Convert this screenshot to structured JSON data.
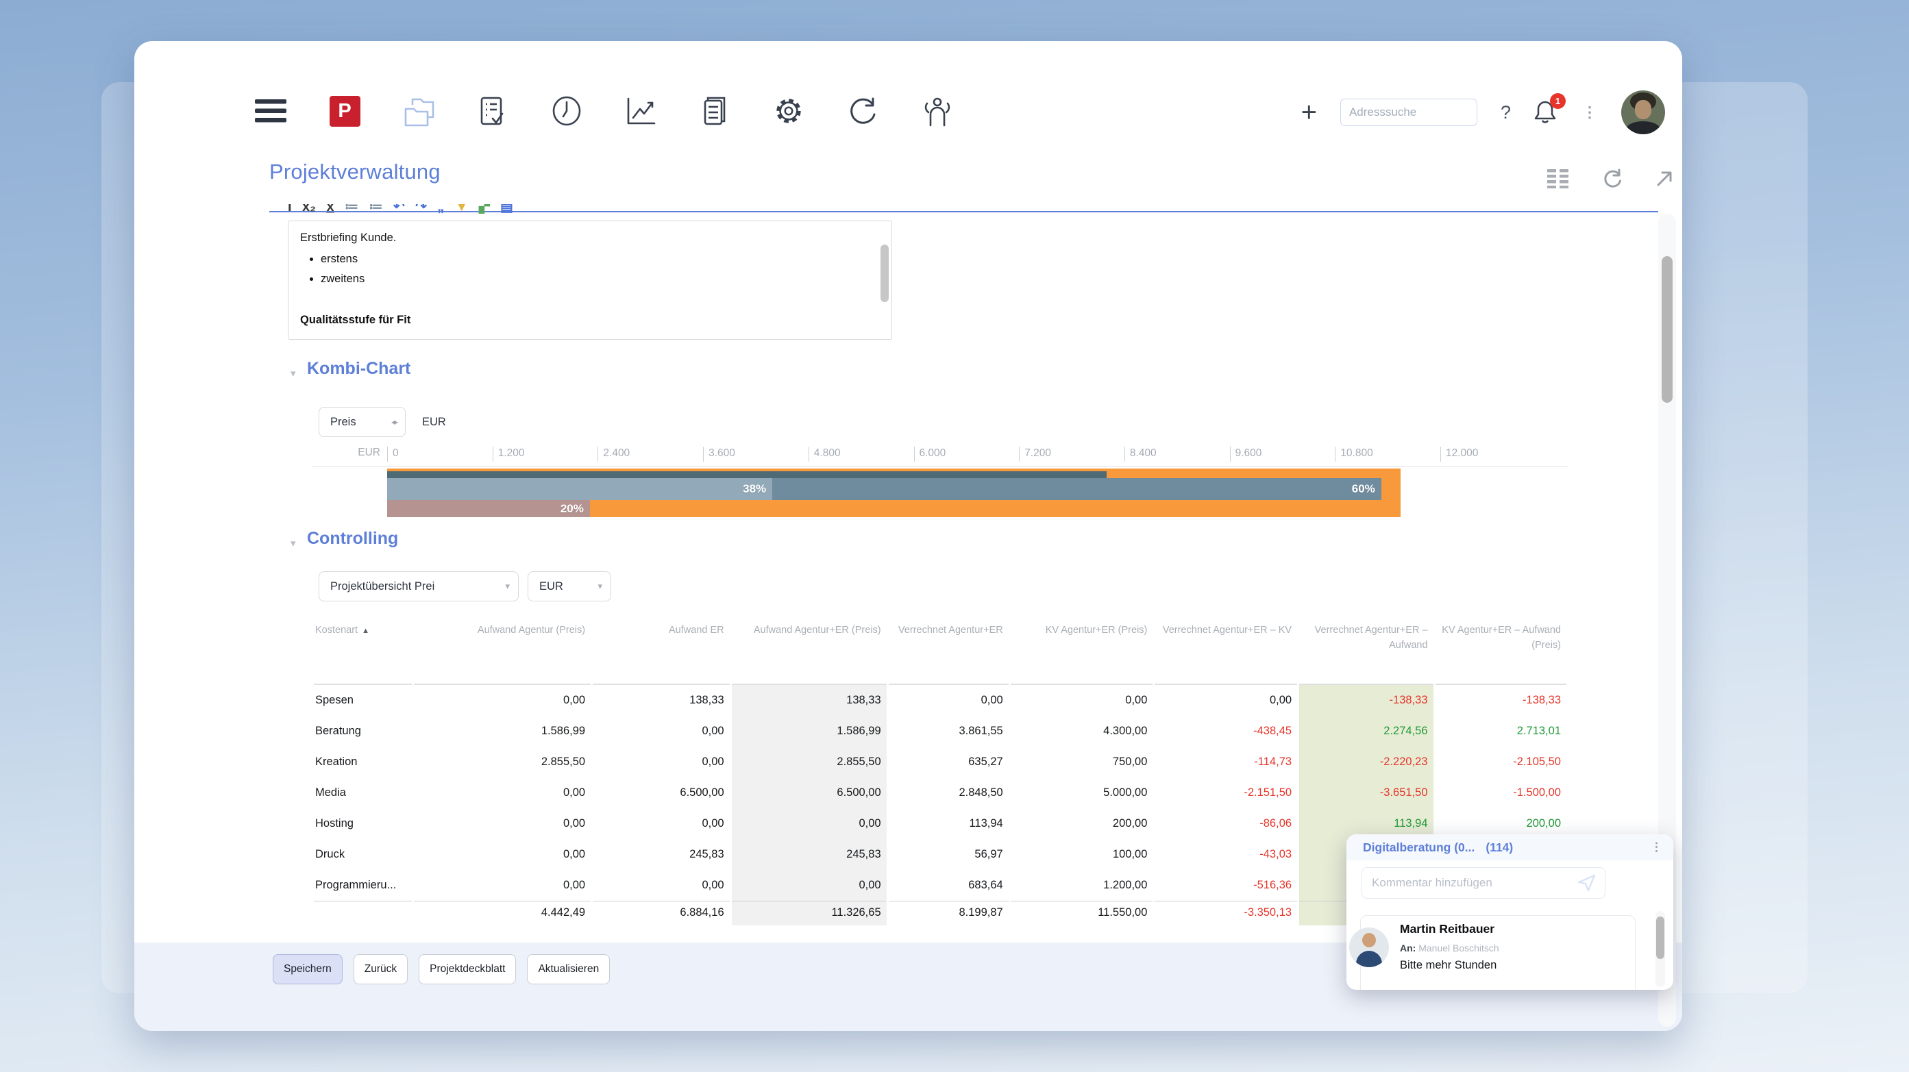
{
  "icons": {
    "add-icon": "+",
    "help-icon": "?",
    "kebab-icon": "⋮",
    "collapse-icon": "▾",
    "dropdown-caret": "▾",
    "swap-icon": "◂▸",
    "sort-asc-icon": "▲",
    "logo-letter": "P"
  },
  "topbar": {
    "search_placeholder": "Adresssuche",
    "notification_count": "1"
  },
  "page": {
    "title": "Projektverwaltung"
  },
  "editor": {
    "text_line": "Erstbriefing Kunde.",
    "bullets": [
      "erstens",
      "zweitens"
    ],
    "clipped_heading": "Qualitätsstufe für Fit"
  },
  "kombi_chart": {
    "section_title": "Kombi-Chart",
    "metric_select_value": "Preis",
    "currency_label": "EUR"
  },
  "chart_data": {
    "type": "bar",
    "orientation": "horizontal",
    "title": "Kombi-Chart",
    "unit": "EUR",
    "xlim": [
      0,
      12000
    ],
    "x_ticks": [
      "0",
      "1.200",
      "2.400",
      "3.600",
      "4.800",
      "6.000",
      "7.200",
      "8.400",
      "9.600",
      "10.800",
      "12.000"
    ],
    "grid": false,
    "legend": false,
    "series": [
      {
        "key": "kv-total",
        "value": 11550,
        "color": "#f89a3b",
        "label": ""
      },
      {
        "key": "verrechnet-strip",
        "value": 8200,
        "color": "#4e6a74",
        "label": ""
      },
      {
        "key": "aufwand-total",
        "value": 11327,
        "color": "#6f8b9e",
        "label": "60%"
      },
      {
        "key": "aufwand-light",
        "value": 4389,
        "color": "#92a9b9",
        "label": "38%"
      },
      {
        "key": "verrechnet-kv",
        "value": 2310,
        "color": "#b59390",
        "label": "20%"
      }
    ]
  },
  "controlling": {
    "section_title": "Controlling",
    "view_select_value": "Projektübersicht Prei",
    "currency_select_value": "EUR",
    "table": {
      "headers": [
        {
          "label": "Kostenart",
          "sort": "asc",
          "align": "left"
        },
        {
          "label": "Aufwand Agentur (Preis)"
        },
        {
          "label": "Aufwand ER"
        },
        {
          "label": "Aufwand Agentur+ER (Preis)",
          "shade": "gray"
        },
        {
          "label": "Verrechnet Agentur+ER"
        },
        {
          "label": "KV Agentur+ER (Preis)"
        },
        {
          "label": "Verrechnet Agentur+ER – KV"
        },
        {
          "label": "Verrechnet Agentur+ER – Aufwand",
          "shade": "green"
        },
        {
          "label": "KV Agentur+ER – Aufwand (Preis)"
        }
      ],
      "rows": [
        {
          "cells": [
            {
              "t": "Spesen"
            },
            {
              "t": "0,00"
            },
            {
              "t": "138,33"
            },
            {
              "t": "138,33"
            },
            {
              "t": "0,00"
            },
            {
              "t": "0,00"
            },
            {
              "t": "0,00"
            },
            {
              "t": "-138,33",
              "c": "neg"
            },
            {
              "t": "-138,33",
              "c": "neg"
            }
          ]
        },
        {
          "cells": [
            {
              "t": "Beratung"
            },
            {
              "t": "1.586,99"
            },
            {
              "t": "0,00"
            },
            {
              "t": "1.586,99"
            },
            {
              "t": "3.861,55"
            },
            {
              "t": "4.300,00"
            },
            {
              "t": "-438,45",
              "c": "neg"
            },
            {
              "t": "2.274,56",
              "c": "pos"
            },
            {
              "t": "2.713,01",
              "c": "pos"
            }
          ]
        },
        {
          "cells": [
            {
              "t": "Kreation"
            },
            {
              "t": "2.855,50"
            },
            {
              "t": "0,00"
            },
            {
              "t": "2.855,50"
            },
            {
              "t": "635,27"
            },
            {
              "t": "750,00"
            },
            {
              "t": "-114,73",
              "c": "neg"
            },
            {
              "t": "-2.220,23",
              "c": "neg"
            },
            {
              "t": "-2.105,50",
              "c": "neg"
            }
          ]
        },
        {
          "cells": [
            {
              "t": "Media"
            },
            {
              "t": "0,00"
            },
            {
              "t": "6.500,00"
            },
            {
              "t": "6.500,00"
            },
            {
              "t": "2.848,50"
            },
            {
              "t": "5.000,00"
            },
            {
              "t": "-2.151,50",
              "c": "neg"
            },
            {
              "t": "-3.651,50",
              "c": "neg"
            },
            {
              "t": "-1.500,00",
              "c": "neg"
            }
          ]
        },
        {
          "cells": [
            {
              "t": "Hosting"
            },
            {
              "t": "0,00"
            },
            {
              "t": "0,00"
            },
            {
              "t": "0,00"
            },
            {
              "t": "113,94"
            },
            {
              "t": "200,00"
            },
            {
              "t": "-86,06",
              "c": "neg"
            },
            {
              "t": "113,94",
              "c": "pos"
            },
            {
              "t": "200,00",
              "c": "pos"
            }
          ]
        },
        {
          "cells": [
            {
              "t": "Druck"
            },
            {
              "t": "0,00"
            },
            {
              "t": "245,83"
            },
            {
              "t": "245,83"
            },
            {
              "t": "56,97"
            },
            {
              "t": "100,00"
            },
            {
              "t": "-43,03",
              "c": "neg"
            },
            {
              "t": ""
            },
            {
              "t": ""
            }
          ]
        },
        {
          "cells": [
            {
              "t": "Programmieru..."
            },
            {
              "t": "0,00"
            },
            {
              "t": "0,00"
            },
            {
              "t": "0,00"
            },
            {
              "t": "683,64"
            },
            {
              "t": "1.200,00"
            },
            {
              "t": "-516,36",
              "c": "neg"
            },
            {
              "t": ""
            },
            {
              "t": ""
            }
          ]
        }
      ],
      "total_row": {
        "cells": [
          {
            "t": ""
          },
          {
            "t": "4.442,49"
          },
          {
            "t": "6.884,16"
          },
          {
            "t": "11.326,65"
          },
          {
            "t": "8.199,87"
          },
          {
            "t": "11.550,00"
          },
          {
            "t": "-3.350,13",
            "c": "neg"
          },
          {
            "t": ""
          },
          {
            "t": ""
          }
        ]
      }
    }
  },
  "footer": {
    "buttons": [
      "Speichern",
      "Zurück",
      "Projektdeckblatt",
      "Aktualisieren"
    ]
  },
  "popup": {
    "title": "Digitalberatung (0...",
    "count": "(114)",
    "input_placeholder": "Kommentar hinzufügen",
    "comment": {
      "author": "Martin Reitbauer",
      "to_label": "An:",
      "to_name": "Manuel Boschitsch",
      "text": "Bitte mehr Stunden"
    }
  }
}
